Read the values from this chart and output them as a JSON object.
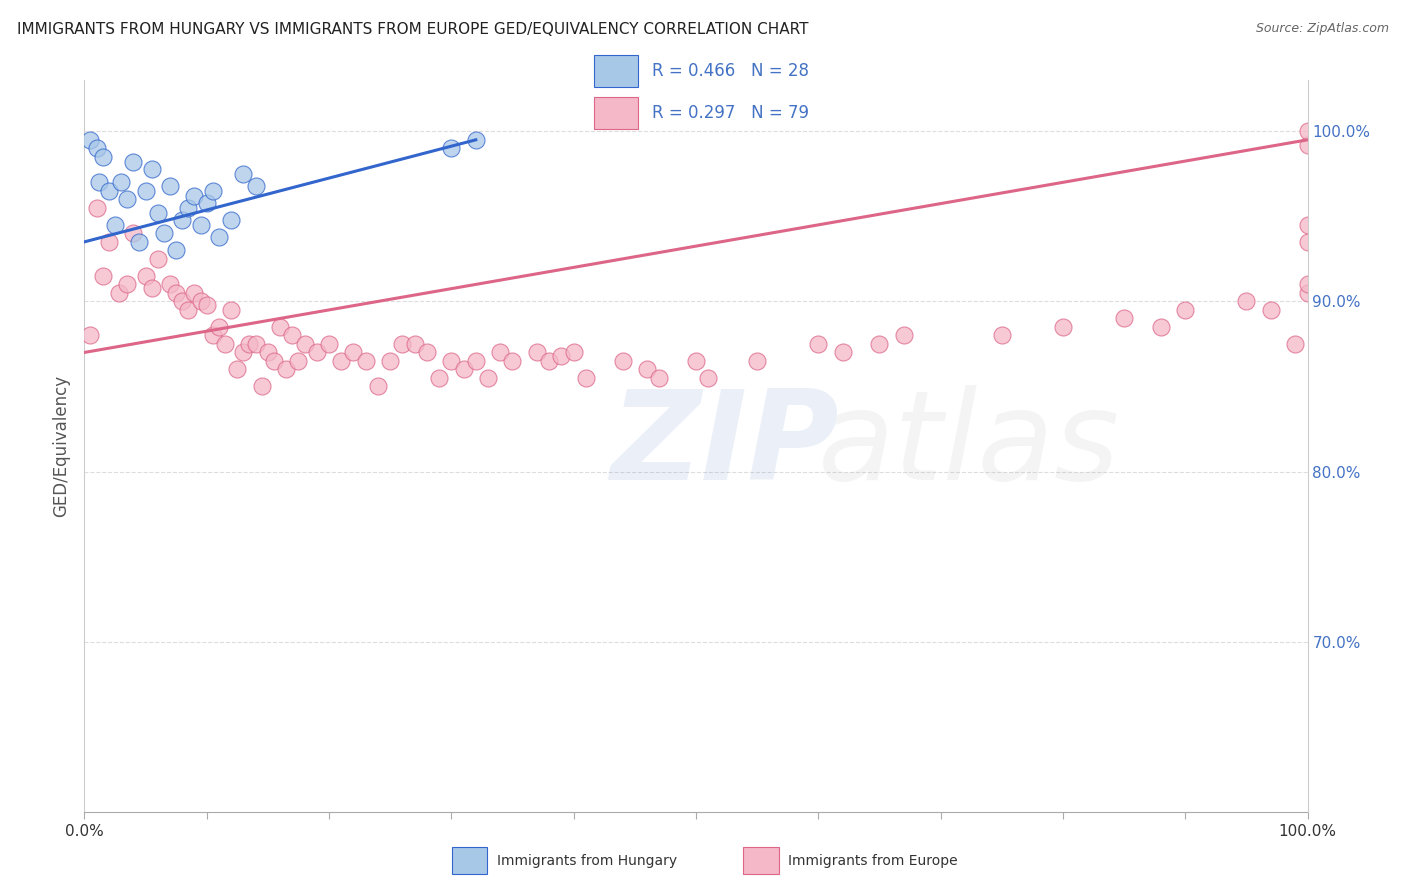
{
  "title": "IMMIGRANTS FROM HUNGARY VS IMMIGRANTS FROM EUROPE GED/EQUIVALENCY CORRELATION CHART",
  "source": "Source: ZipAtlas.com",
  "ylabel": "GED/Equivalency",
  "blue_color": "#a8c8e8",
  "pink_color": "#f4b8c8",
  "blue_line_color": "#3366cc",
  "pink_line_color": "#dd6688",
  "title_color": "#222222",
  "right_axis_color": "#4472c4",
  "hungary_x": [
    0.5,
    1.0,
    1.2,
    1.5,
    2.0,
    2.5,
    3.0,
    3.5,
    4.0,
    4.5,
    5.0,
    5.5,
    6.0,
    6.5,
    7.0,
    7.5,
    8.0,
    8.5,
    9.0,
    9.5,
    10.0,
    10.5,
    11.0,
    12.0,
    13.0,
    14.0,
    30.0,
    32.0
  ],
  "hungary_y": [
    99.5,
    99.0,
    97.0,
    98.5,
    96.5,
    94.5,
    97.0,
    96.0,
    98.2,
    93.5,
    96.5,
    97.8,
    95.2,
    94.0,
    96.8,
    93.0,
    94.8,
    95.5,
    96.2,
    94.5,
    95.8,
    96.5,
    93.8,
    94.8,
    97.5,
    96.8,
    99.0,
    99.5
  ],
  "europe_x": [
    0.5,
    1.0,
    1.5,
    2.0,
    2.8,
    3.5,
    4.0,
    5.0,
    5.5,
    6.0,
    7.0,
    7.5,
    8.0,
    8.5,
    9.0,
    9.5,
    10.0,
    10.5,
    11.0,
    11.5,
    12.0,
    12.5,
    13.0,
    13.5,
    14.0,
    14.5,
    15.0,
    15.5,
    16.0,
    16.5,
    17.0,
    17.5,
    18.0,
    19.0,
    20.0,
    21.0,
    22.0,
    23.0,
    24.0,
    25.0,
    26.0,
    27.0,
    28.0,
    29.0,
    30.0,
    31.0,
    32.0,
    33.0,
    34.0,
    35.0,
    37.0,
    38.0,
    39.0,
    40.0,
    41.0,
    44.0,
    46.0,
    47.0,
    50.0,
    51.0,
    55.0,
    60.0,
    62.0,
    65.0,
    67.0,
    75.0,
    80.0,
    85.0,
    88.0,
    90.0,
    95.0,
    97.0,
    99.0,
    100.0,
    100.0,
    100.0,
    100.0,
    100.0,
    100.0
  ],
  "europe_y": [
    88.0,
    95.5,
    91.5,
    93.5,
    90.5,
    91.0,
    94.0,
    91.5,
    90.8,
    92.5,
    91.0,
    90.5,
    90.0,
    89.5,
    90.5,
    90.0,
    89.8,
    88.0,
    88.5,
    87.5,
    89.5,
    86.0,
    87.0,
    87.5,
    87.5,
    85.0,
    87.0,
    86.5,
    88.5,
    86.0,
    88.0,
    86.5,
    87.5,
    87.0,
    87.5,
    86.5,
    87.0,
    86.5,
    85.0,
    86.5,
    87.5,
    87.5,
    87.0,
    85.5,
    86.5,
    86.0,
    86.5,
    85.5,
    87.0,
    86.5,
    87.0,
    86.5,
    86.8,
    87.0,
    85.5,
    86.5,
    86.0,
    85.5,
    86.5,
    85.5,
    86.5,
    87.5,
    87.0,
    87.5,
    88.0,
    88.0,
    88.5,
    89.0,
    88.5,
    89.5,
    90.0,
    89.5,
    87.5,
    90.5,
    91.0,
    93.5,
    94.5,
    99.2,
    100.0
  ],
  "hungary_size": 150,
  "europe_size": 150,
  "xlim": [
    0,
    100
  ],
  "ylim": [
    60,
    103
  ],
  "blue_trend_x": [
    0,
    32
  ],
  "blue_trend_y_start": 93.5,
  "blue_trend_y_end": 99.5,
  "pink_trend_x": [
    0,
    100
  ],
  "pink_trend_y_start": 87.0,
  "pink_trend_y_end": 99.5,
  "grid_yticks": [
    70,
    80,
    90,
    100
  ],
  "right_ytick_labels": [
    "70.0%",
    "80.0%",
    "90.0%",
    "100.0%"
  ],
  "background_color": "#ffffff",
  "grid_color": "#dddddd"
}
